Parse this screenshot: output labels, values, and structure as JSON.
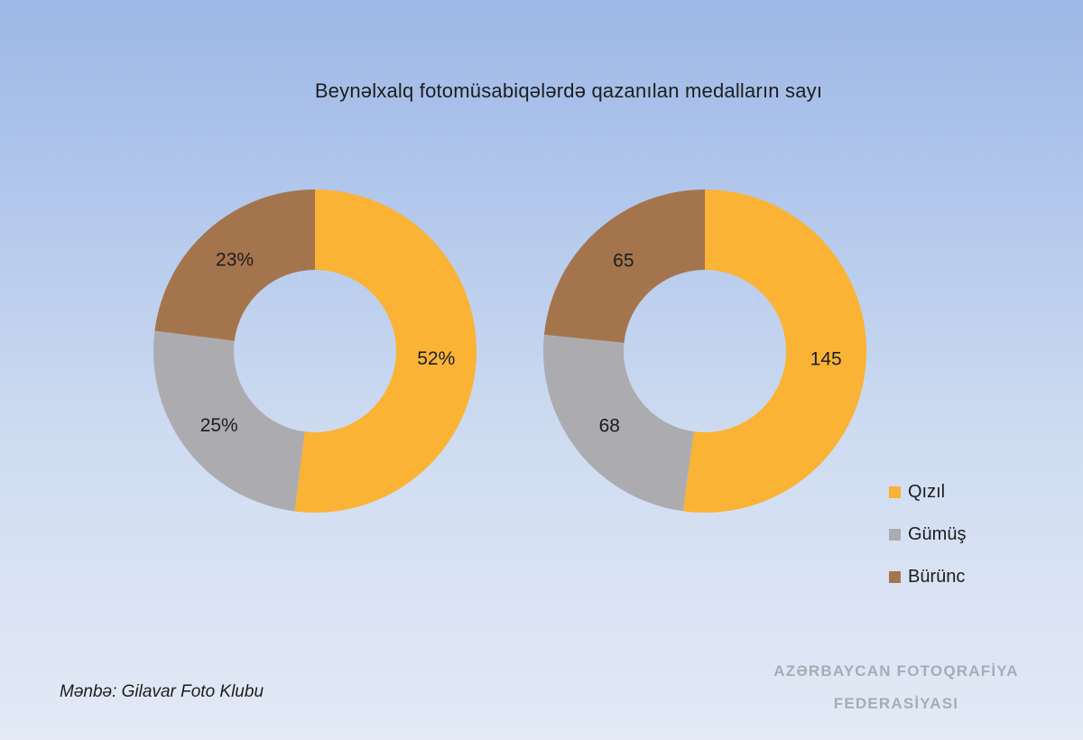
{
  "title": "Beynəlxalq fotomüsabiqələrdə qazanılan medalların sayı",
  "colors": {
    "Qızıl": "#fab334",
    "Gümüş": "#acacb0",
    "Bürünc": "#a4754d"
  },
  "chart_data": [
    {
      "type": "pie",
      "style": "donut",
      "categories": [
        "Qızıl",
        "Gümüş",
        "Bürünc"
      ],
      "values": [
        52,
        25,
        23
      ],
      "labels": [
        "52%",
        "25%",
        "23%"
      ]
    },
    {
      "type": "pie",
      "style": "donut",
      "categories": [
        "Qızıl",
        "Gümüş",
        "Bürünc"
      ],
      "values": [
        145,
        68,
        65
      ],
      "labels": [
        "145",
        "68",
        "65"
      ]
    }
  ],
  "legend": {
    "items": [
      {
        "label": "Qızıl",
        "color": "#fab334"
      },
      {
        "label": "Gümüş",
        "color": "#acacb0"
      },
      {
        "label": "Bürünc",
        "color": "#a4754d"
      }
    ]
  },
  "source": "Mənbə: Gilavar Foto Klubu",
  "watermark": {
    "line1": "AZƏRBAYCAN FOTOQRAFİYA",
    "line2": "FEDERASİYASI"
  }
}
